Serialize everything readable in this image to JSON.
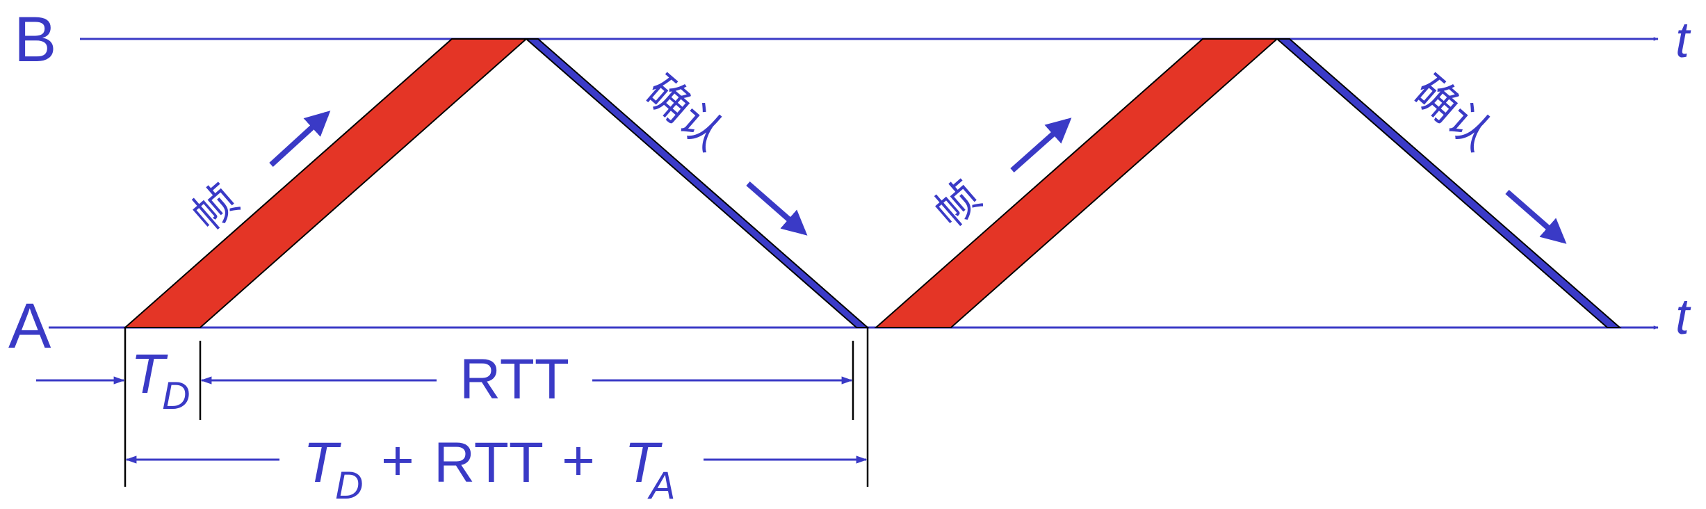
{
  "stations": {
    "b_label": "B",
    "a_label": "A",
    "time_axis": "t"
  },
  "frame_label": "帧",
  "ack_label": "确认",
  "intervals": {
    "td_main": "T",
    "td_sub": "D",
    "rtt": "RTT",
    "total_td_main": "T",
    "total_td_sub": "D",
    "plus1": "+",
    "total_rtt": "RTT",
    "plus2": "+",
    "ta_main": "T",
    "ta_sub": "A"
  },
  "colors": {
    "frame": "#e43526",
    "ack": "#3b3bc8",
    "line": "#3a3ac6",
    "text": "#3a3ac6",
    "tick": "#000000"
  }
}
